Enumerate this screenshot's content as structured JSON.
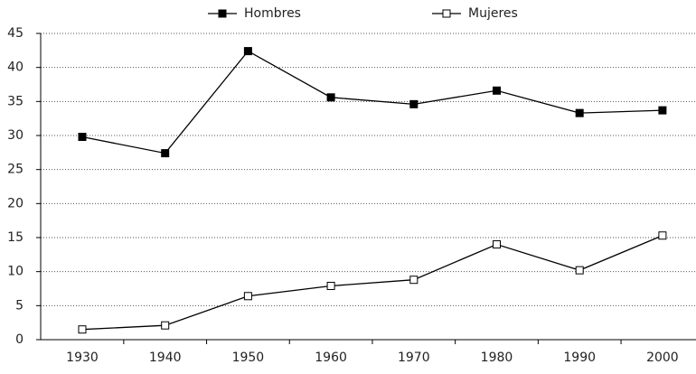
{
  "chart_data": {
    "type": "line",
    "categories": [
      "1930",
      "1940",
      "1950",
      "1960",
      "1970",
      "1980",
      "1990",
      "2000"
    ],
    "series": [
      {
        "name": "Hombres",
        "color": "#000000",
        "marker": "filled-square",
        "values": [
          29.8,
          27.4,
          42.4,
          35.6,
          34.6,
          36.6,
          33.3,
          33.7
        ]
      },
      {
        "name": "Mujeres",
        "color": "#000000",
        "marker": "open-square",
        "values": [
          1.5,
          2.1,
          6.4,
          7.9,
          8.8,
          14.0,
          10.2,
          15.3
        ]
      }
    ],
    "ylim": [
      0,
      45
    ],
    "yticks": [
      0,
      5,
      10,
      15,
      20,
      25,
      30,
      35,
      40,
      45
    ],
    "grid": true,
    "legend": "top"
  }
}
